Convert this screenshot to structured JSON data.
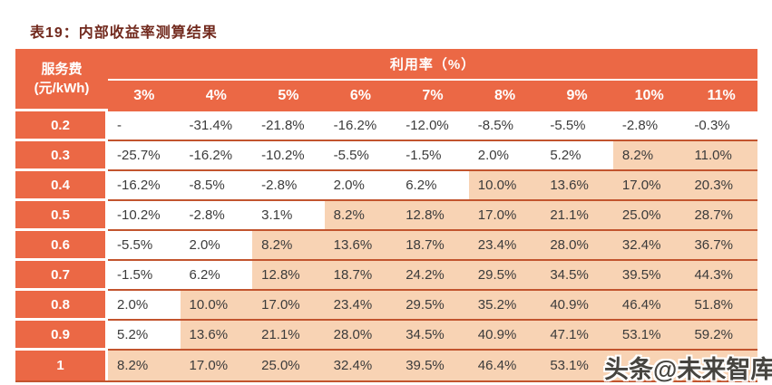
{
  "title": "表19：内部收益率测算结果",
  "colors": {
    "header_bg": "#EB6845",
    "label_bg": "#EB6845",
    "highlight_bg": "#F8D3B4",
    "row_line": "#C2542E",
    "title_color": "#71291D",
    "text_color": "#3B3B3B",
    "header_text": "#FFFFFF"
  },
  "table": {
    "corner_header": {
      "line1": "服务费",
      "line2": "(元/kWh)"
    },
    "group_header": "利用率（%）",
    "columns": [
      "3%",
      "4%",
      "5%",
      "6%",
      "7%",
      "8%",
      "9%",
      "10%",
      "11%"
    ],
    "rows": [
      {
        "label": "0.2",
        "values": [
          "-",
          "-31.4%",
          "-21.8%",
          "-16.2%",
          "-12.0%",
          "-8.5%",
          "-5.5%",
          "-2.8%",
          "-0.3%"
        ],
        "highlight": [
          false,
          false,
          false,
          false,
          false,
          false,
          false,
          false,
          false
        ]
      },
      {
        "label": "0.3",
        "values": [
          "-25.7%",
          "-16.2%",
          "-10.2%",
          "-5.5%",
          "-1.5%",
          "2.0%",
          "5.2%",
          "8.2%",
          "11.0%"
        ],
        "highlight": [
          false,
          false,
          false,
          false,
          false,
          false,
          false,
          true,
          true
        ]
      },
      {
        "label": "0.4",
        "values": [
          "-16.2%",
          "-8.5%",
          "-2.8%",
          "2.0%",
          "6.2%",
          "10.0%",
          "13.6%",
          "17.0%",
          "20.3%"
        ],
        "highlight": [
          false,
          false,
          false,
          false,
          false,
          true,
          true,
          true,
          true
        ]
      },
      {
        "label": "0.5",
        "values": [
          "-10.2%",
          "-2.8%",
          "3.1%",
          "8.2%",
          "12.8%",
          "17.0%",
          "21.1%",
          "25.0%",
          "28.7%"
        ],
        "highlight": [
          false,
          false,
          false,
          true,
          true,
          true,
          true,
          true,
          true
        ]
      },
      {
        "label": "0.6",
        "values": [
          "-5.5%",
          "2.0%",
          "8.2%",
          "13.6%",
          "18.7%",
          "23.4%",
          "28.0%",
          "32.4%",
          "36.7%"
        ],
        "highlight": [
          false,
          false,
          true,
          true,
          true,
          true,
          true,
          true,
          true
        ]
      },
      {
        "label": "0.7",
        "values": [
          "-1.5%",
          "6.2%",
          "12.8%",
          "18.7%",
          "24.2%",
          "29.5%",
          "34.5%",
          "39.5%",
          "44.3%"
        ],
        "highlight": [
          false,
          false,
          true,
          true,
          true,
          true,
          true,
          true,
          true
        ]
      },
      {
        "label": "0.8",
        "values": [
          "2.0%",
          "10.0%",
          "17.0%",
          "23.4%",
          "29.5%",
          "35.2%",
          "40.9%",
          "46.4%",
          "51.8%"
        ],
        "highlight": [
          false,
          true,
          true,
          true,
          true,
          true,
          true,
          true,
          true
        ]
      },
      {
        "label": "0.9",
        "values": [
          "5.2%",
          "13.6%",
          "21.1%",
          "28.0%",
          "34.5%",
          "40.9%",
          "47.1%",
          "53.1%",
          "59.2%"
        ],
        "highlight": [
          false,
          true,
          true,
          true,
          true,
          true,
          true,
          true,
          true
        ]
      },
      {
        "label": "1",
        "values": [
          "8.2%",
          "17.0%",
          "25.0%",
          "32.4%",
          "39.5%",
          "46.4%",
          "53.1%",
          "",
          ""
        ],
        "highlight": [
          true,
          true,
          true,
          true,
          true,
          true,
          true,
          true,
          true
        ]
      }
    ]
  },
  "watermark": "头条@未来智库"
}
